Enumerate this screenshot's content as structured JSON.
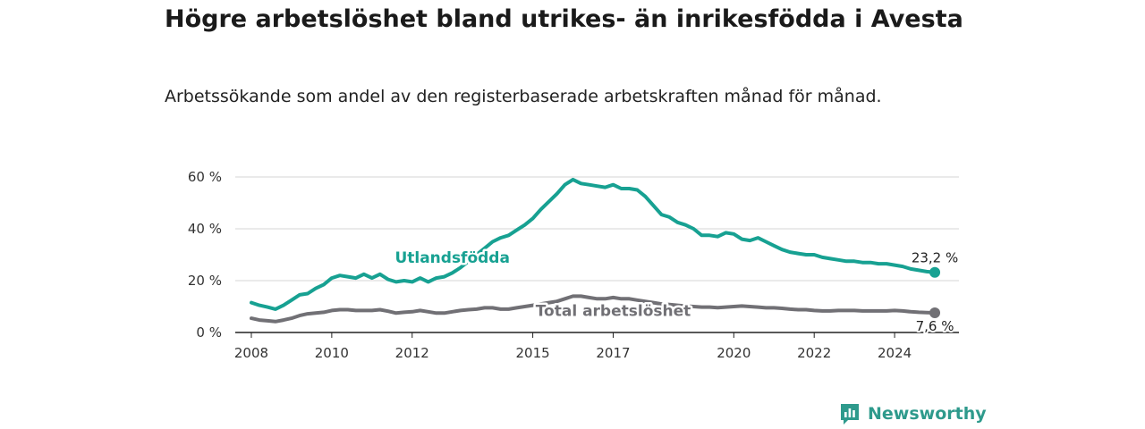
{
  "title": "Högre arbetslöshet bland utrikes- än inrikesfödda i Avesta",
  "subtitle": "Arbetssökande som andel av den registerbaserade arbetskraften månad för månad.",
  "brand": {
    "name": "Newsworthy",
    "color": "#2e9a8c"
  },
  "chart_data": {
    "type": "line",
    "title": "Högre arbetslöshet bland utrikes- än inrikesfödda i Avesta",
    "subtitle": "Arbetssökande som andel av den registerbaserade arbetskraften månad för månad.",
    "xlabel": "",
    "ylabel": "",
    "xlim": [
      2007.6,
      2025.6
    ],
    "ylim": [
      0,
      60
    ],
    "x_ticks": [
      2008,
      2010,
      2012,
      2015,
      2017,
      2020,
      2022,
      2024
    ],
    "y_ticks": [
      0,
      20,
      40,
      60
    ],
    "y_tick_labels": [
      "0 %",
      "20 %",
      "40 %",
      "60 %"
    ],
    "grid": "horizontal",
    "series": [
      {
        "name": "Utlandsfödda",
        "color": "#17a192",
        "end_label": "23,2 %",
        "points": [
          [
            2008.0,
            11.5
          ],
          [
            2008.2,
            10.5
          ],
          [
            2008.4,
            9.8
          ],
          [
            2008.6,
            9.0
          ],
          [
            2008.8,
            10.5
          ],
          [
            2009.0,
            12.5
          ],
          [
            2009.2,
            14.5
          ],
          [
            2009.4,
            15.0
          ],
          [
            2009.6,
            17.0
          ],
          [
            2009.8,
            18.5
          ],
          [
            2010.0,
            21.0
          ],
          [
            2010.2,
            22.0
          ],
          [
            2010.4,
            21.5
          ],
          [
            2010.6,
            21.0
          ],
          [
            2010.8,
            22.5
          ],
          [
            2011.0,
            21.0
          ],
          [
            2011.2,
            22.5
          ],
          [
            2011.4,
            20.5
          ],
          [
            2011.6,
            19.5
          ],
          [
            2011.8,
            20.0
          ],
          [
            2012.0,
            19.5
          ],
          [
            2012.2,
            21.0
          ],
          [
            2012.4,
            19.5
          ],
          [
            2012.6,
            21.0
          ],
          [
            2012.8,
            21.5
          ],
          [
            2013.0,
            23.0
          ],
          [
            2013.2,
            25.0
          ],
          [
            2013.4,
            27.5
          ],
          [
            2013.6,
            30.0
          ],
          [
            2013.8,
            32.5
          ],
          [
            2014.0,
            35.0
          ],
          [
            2014.2,
            36.5
          ],
          [
            2014.4,
            37.5
          ],
          [
            2014.6,
            39.5
          ],
          [
            2014.8,
            41.5
          ],
          [
            2015.0,
            44.0
          ],
          [
            2015.2,
            47.5
          ],
          [
            2015.4,
            50.5
          ],
          [
            2015.6,
            53.5
          ],
          [
            2015.8,
            57.0
          ],
          [
            2016.0,
            59.0
          ],
          [
            2016.2,
            57.5
          ],
          [
            2016.4,
            57.0
          ],
          [
            2016.6,
            56.5
          ],
          [
            2016.8,
            56.0
          ],
          [
            2017.0,
            57.0
          ],
          [
            2017.2,
            55.5
          ],
          [
            2017.4,
            55.5
          ],
          [
            2017.6,
            55.0
          ],
          [
            2017.8,
            52.5
          ],
          [
            2018.0,
            49.0
          ],
          [
            2018.2,
            45.5
          ],
          [
            2018.4,
            44.5
          ],
          [
            2018.6,
            42.5
          ],
          [
            2018.8,
            41.5
          ],
          [
            2019.0,
            40.0
          ],
          [
            2019.2,
            37.5
          ],
          [
            2019.4,
            37.5
          ],
          [
            2019.6,
            37.0
          ],
          [
            2019.8,
            38.5
          ],
          [
            2020.0,
            38.0
          ],
          [
            2020.2,
            36.0
          ],
          [
            2020.4,
            35.5
          ],
          [
            2020.6,
            36.5
          ],
          [
            2020.8,
            35.0
          ],
          [
            2021.0,
            33.5
          ],
          [
            2021.2,
            32.0
          ],
          [
            2021.4,
            31.0
          ],
          [
            2021.6,
            30.5
          ],
          [
            2021.8,
            30.0
          ],
          [
            2022.0,
            30.0
          ],
          [
            2022.2,
            29.0
          ],
          [
            2022.4,
            28.5
          ],
          [
            2022.6,
            28.0
          ],
          [
            2022.8,
            27.5
          ],
          [
            2023.0,
            27.5
          ],
          [
            2023.2,
            27.0
          ],
          [
            2023.4,
            27.0
          ],
          [
            2023.6,
            26.5
          ],
          [
            2023.8,
            26.5
          ],
          [
            2024.0,
            26.0
          ],
          [
            2024.2,
            25.5
          ],
          [
            2024.4,
            24.5
          ],
          [
            2024.6,
            24.0
          ],
          [
            2024.8,
            23.5
          ],
          [
            2025.0,
            23.2
          ]
        ]
      },
      {
        "name": "Total arbetslöshet",
        "color": "#717075",
        "end_label": "7,6 %",
        "points": [
          [
            2008.0,
            5.5
          ],
          [
            2008.2,
            4.8
          ],
          [
            2008.4,
            4.5
          ],
          [
            2008.6,
            4.2
          ],
          [
            2008.8,
            4.8
          ],
          [
            2009.0,
            5.5
          ],
          [
            2009.2,
            6.5
          ],
          [
            2009.4,
            7.2
          ],
          [
            2009.6,
            7.5
          ],
          [
            2009.8,
            7.8
          ],
          [
            2010.0,
            8.5
          ],
          [
            2010.2,
            8.8
          ],
          [
            2010.4,
            8.8
          ],
          [
            2010.6,
            8.5
          ],
          [
            2010.8,
            8.5
          ],
          [
            2011.0,
            8.5
          ],
          [
            2011.2,
            8.8
          ],
          [
            2011.4,
            8.2
          ],
          [
            2011.6,
            7.5
          ],
          [
            2011.8,
            7.8
          ],
          [
            2012.0,
            8.0
          ],
          [
            2012.2,
            8.5
          ],
          [
            2012.4,
            8.0
          ],
          [
            2012.6,
            7.5
          ],
          [
            2012.8,
            7.5
          ],
          [
            2013.0,
            8.0
          ],
          [
            2013.2,
            8.5
          ],
          [
            2013.4,
            8.8
          ],
          [
            2013.6,
            9.0
          ],
          [
            2013.8,
            9.5
          ],
          [
            2014.0,
            9.5
          ],
          [
            2014.2,
            9.0
          ],
          [
            2014.4,
            9.0
          ],
          [
            2014.6,
            9.5
          ],
          [
            2014.8,
            10.0
          ],
          [
            2015.0,
            10.5
          ],
          [
            2015.2,
            11.0
          ],
          [
            2015.4,
            11.5
          ],
          [
            2015.6,
            12.0
          ],
          [
            2015.8,
            13.0
          ],
          [
            2016.0,
            14.0
          ],
          [
            2016.2,
            14.0
          ],
          [
            2016.4,
            13.5
          ],
          [
            2016.6,
            13.0
          ],
          [
            2016.8,
            13.0
          ],
          [
            2017.0,
            13.5
          ],
          [
            2017.2,
            13.0
          ],
          [
            2017.4,
            13.0
          ],
          [
            2017.6,
            12.5
          ],
          [
            2017.8,
            12.0
          ],
          [
            2018.0,
            11.5
          ],
          [
            2018.2,
            11.0
          ],
          [
            2018.4,
            10.8
          ],
          [
            2018.6,
            10.5
          ],
          [
            2018.8,
            10.2
          ],
          [
            2019.0,
            10.0
          ],
          [
            2019.2,
            9.8
          ],
          [
            2019.4,
            9.8
          ],
          [
            2019.6,
            9.6
          ],
          [
            2019.8,
            9.8
          ],
          [
            2020.0,
            10.0
          ],
          [
            2020.2,
            10.2
          ],
          [
            2020.4,
            10.0
          ],
          [
            2020.6,
            9.8
          ],
          [
            2020.8,
            9.5
          ],
          [
            2021.0,
            9.5
          ],
          [
            2021.2,
            9.3
          ],
          [
            2021.4,
            9.0
          ],
          [
            2021.6,
            8.8
          ],
          [
            2021.8,
            8.8
          ],
          [
            2022.0,
            8.5
          ],
          [
            2022.2,
            8.3
          ],
          [
            2022.4,
            8.3
          ],
          [
            2022.6,
            8.5
          ],
          [
            2022.8,
            8.5
          ],
          [
            2023.0,
            8.5
          ],
          [
            2023.2,
            8.3
          ],
          [
            2023.4,
            8.3
          ],
          [
            2023.6,
            8.3
          ],
          [
            2023.8,
            8.3
          ],
          [
            2024.0,
            8.5
          ],
          [
            2024.2,
            8.3
          ],
          [
            2024.4,
            8.0
          ],
          [
            2024.6,
            7.8
          ],
          [
            2024.8,
            7.7
          ],
          [
            2025.0,
            7.6
          ]
        ]
      }
    ]
  }
}
